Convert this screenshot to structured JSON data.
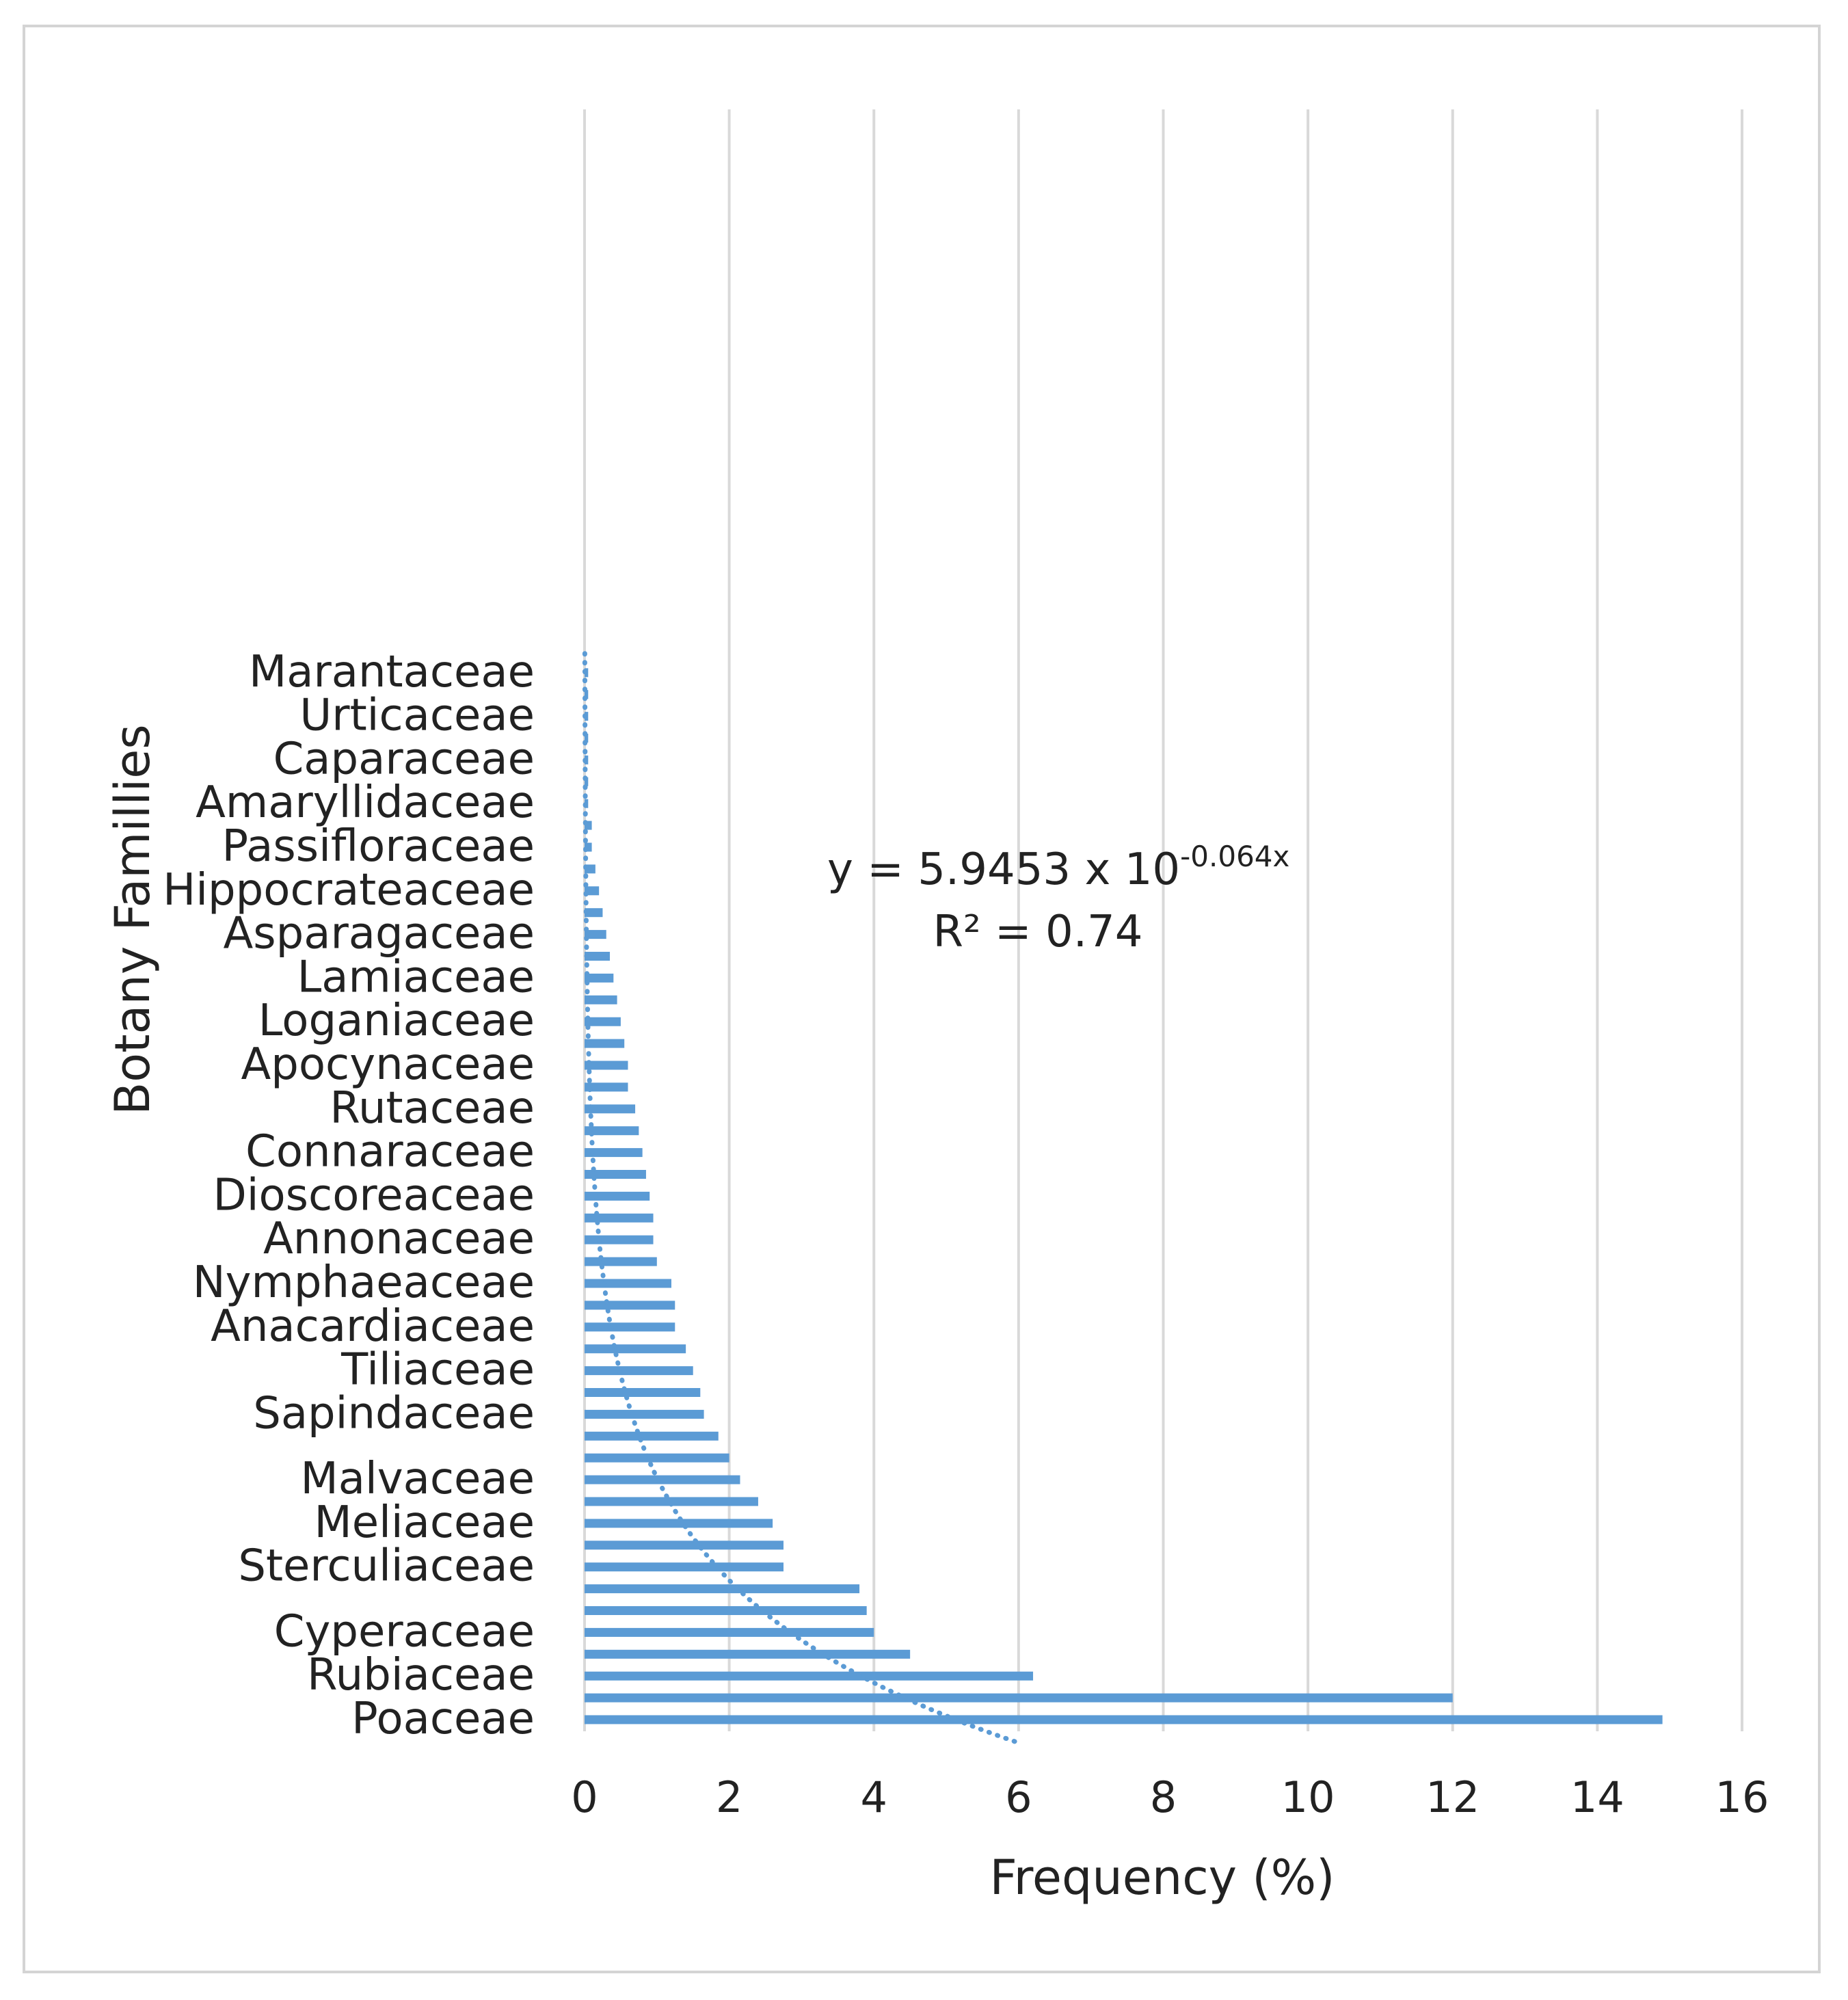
{
  "chart_data": {
    "type": "bar",
    "orientation": "horizontal",
    "ylabel": "Botany Famillies",
    "xlabel": "Frequency (%)",
    "xlim": [
      0,
      16
    ],
    "xticks": [
      0,
      2,
      4,
      6,
      8,
      10,
      12,
      14,
      16
    ],
    "grid": true,
    "categories": [
      "Poaceae",
      "",
      "Rubiaceae",
      "",
      "Cyperaceae",
      "",
      "",
      "Sterculiaceae",
      "",
      "Meliaceae",
      "",
      "Malvaceae",
      "",
      "",
      "Sapindaceae",
      "",
      "Tiliaceae",
      "",
      "Anacardiaceae",
      "",
      "Nymphaeaceae",
      "",
      "Annonaceae",
      "",
      "Dioscoreaceae",
      "",
      "Connaraceae",
      "",
      "Rutaceae",
      "",
      "Apocynaceae",
      "",
      "Loganiaceae",
      "",
      "Lamiaceae",
      "",
      "Asparagaceae",
      "",
      "Hippocrateaceae",
      "",
      "Passifloraceae",
      "",
      "Amaryllidaceae",
      "",
      "Caparaceae",
      "",
      "Urticaceae",
      "",
      "Marantaceae"
    ],
    "labeled_categories": [
      "Poaceae",
      "Rubiaceae",
      "Cyperaceae",
      "Sterculiaceae",
      "Meliaceae",
      "Malvaceae",
      "Sapindaceae",
      "Tiliaceae",
      "Anacardiaceae",
      "Nymphaeaceae",
      "Annonaceae",
      "Dioscoreaceae",
      "Connaraceae",
      "Rutaceae",
      "Apocynaceae",
      "Loganiaceae",
      "Lamiaceae",
      "Asparagaceae",
      "Hippocrateaceae",
      "Passifloraceae",
      "Amaryllidaceae",
      "Caparaceae",
      "Urticaceae",
      "Marantaceae"
    ],
    "values": [
      14.9,
      12.0,
      6.2,
      4.5,
      4.0,
      3.9,
      3.8,
      2.75,
      2.75,
      2.6,
      2.4,
      2.15,
      2.0,
      1.85,
      1.65,
      1.6,
      1.5,
      1.4,
      1.25,
      1.25,
      1.2,
      1.0,
      0.95,
      0.95,
      0.9,
      0.85,
      0.8,
      0.75,
      0.7,
      0.6,
      0.6,
      0.55,
      0.5,
      0.45,
      0.4,
      0.35,
      0.3,
      0.25,
      0.2,
      0.15,
      0.1,
      0.1,
      0.05,
      0.05,
      0.05,
      0.05,
      0.05,
      0.05,
      0.05
    ],
    "trendline": {
      "type": "exponential",
      "style": "dotted",
      "a": 5.9453,
      "b": -0.064,
      "equation": "y = 5.9453 x 10",
      "exponent": "-0.064x",
      "r2": "R² = 0.74"
    },
    "bar_color": "#5b9bd5",
    "grid_color": "#d9d9d9"
  }
}
